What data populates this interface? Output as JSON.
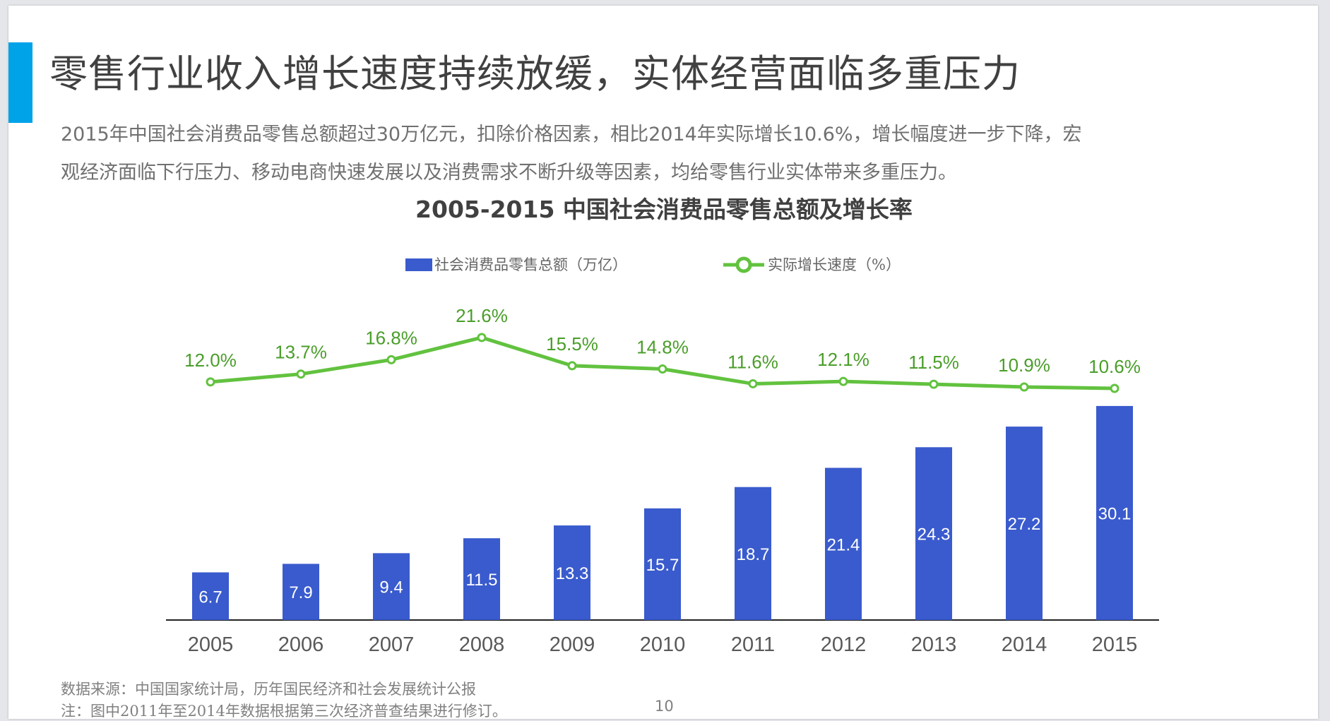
{
  "slide": {
    "title": "零售行业收入增长速度持续放缓，实体经营面临多重压力",
    "paragraph": [
      "2015年中国社会消费品零售总额超过30万亿元，扣除价格因素，相比2014年实际增长10.6%，增长幅度进一步下降，宏",
      "观经济面临下行压力、移动电商快速发展以及消费需求不断升级等因素，均给零售行业实体带来多重压力。"
    ],
    "footnotes": [
      "数据来源：中国国家统计局，历年国民经济和社会发展统计公报",
      "注：图中2011年至2014年数据根据第三次经济普查结果进行修订。"
    ],
    "page_number": "10",
    "accent_color": "#00a3e8"
  },
  "chart_data": {
    "type": "bar+line",
    "title": "2005-2015 中国社会消费品零售总额及增长率",
    "legend_position": "top",
    "grid": false,
    "categories": [
      "2005",
      "2006",
      "2007",
      "2008",
      "2009",
      "2010",
      "2011",
      "2012",
      "2013",
      "2014",
      "2015"
    ],
    "series": [
      {
        "name": "社会消费品零售总额（万亿）",
        "type": "bar",
        "color": "#3a5bcd",
        "values": [
          6.7,
          7.9,
          9.4,
          11.5,
          13.3,
          15.7,
          18.7,
          21.4,
          24.3,
          27.2,
          30.1
        ],
        "labels": [
          "6.7",
          "7.9",
          "9.4",
          "11.5",
          "13.3",
          "15.7",
          "18.7",
          "21.4",
          "24.3",
          "27.2",
          "30.1"
        ]
      },
      {
        "name": "实际增长速度（%）",
        "type": "line",
        "color": "#62c23f",
        "values": [
          12.0,
          13.7,
          16.8,
          21.6,
          15.5,
          14.8,
          11.6,
          12.1,
          11.5,
          10.9,
          10.6
        ],
        "labels": [
          "12.0%",
          "13.7%",
          "16.8%",
          "21.6%",
          "15.5%",
          "14.8%",
          "11.6%",
          "12.1%",
          "11.5%",
          "10.9%",
          "10.6%"
        ]
      }
    ]
  }
}
